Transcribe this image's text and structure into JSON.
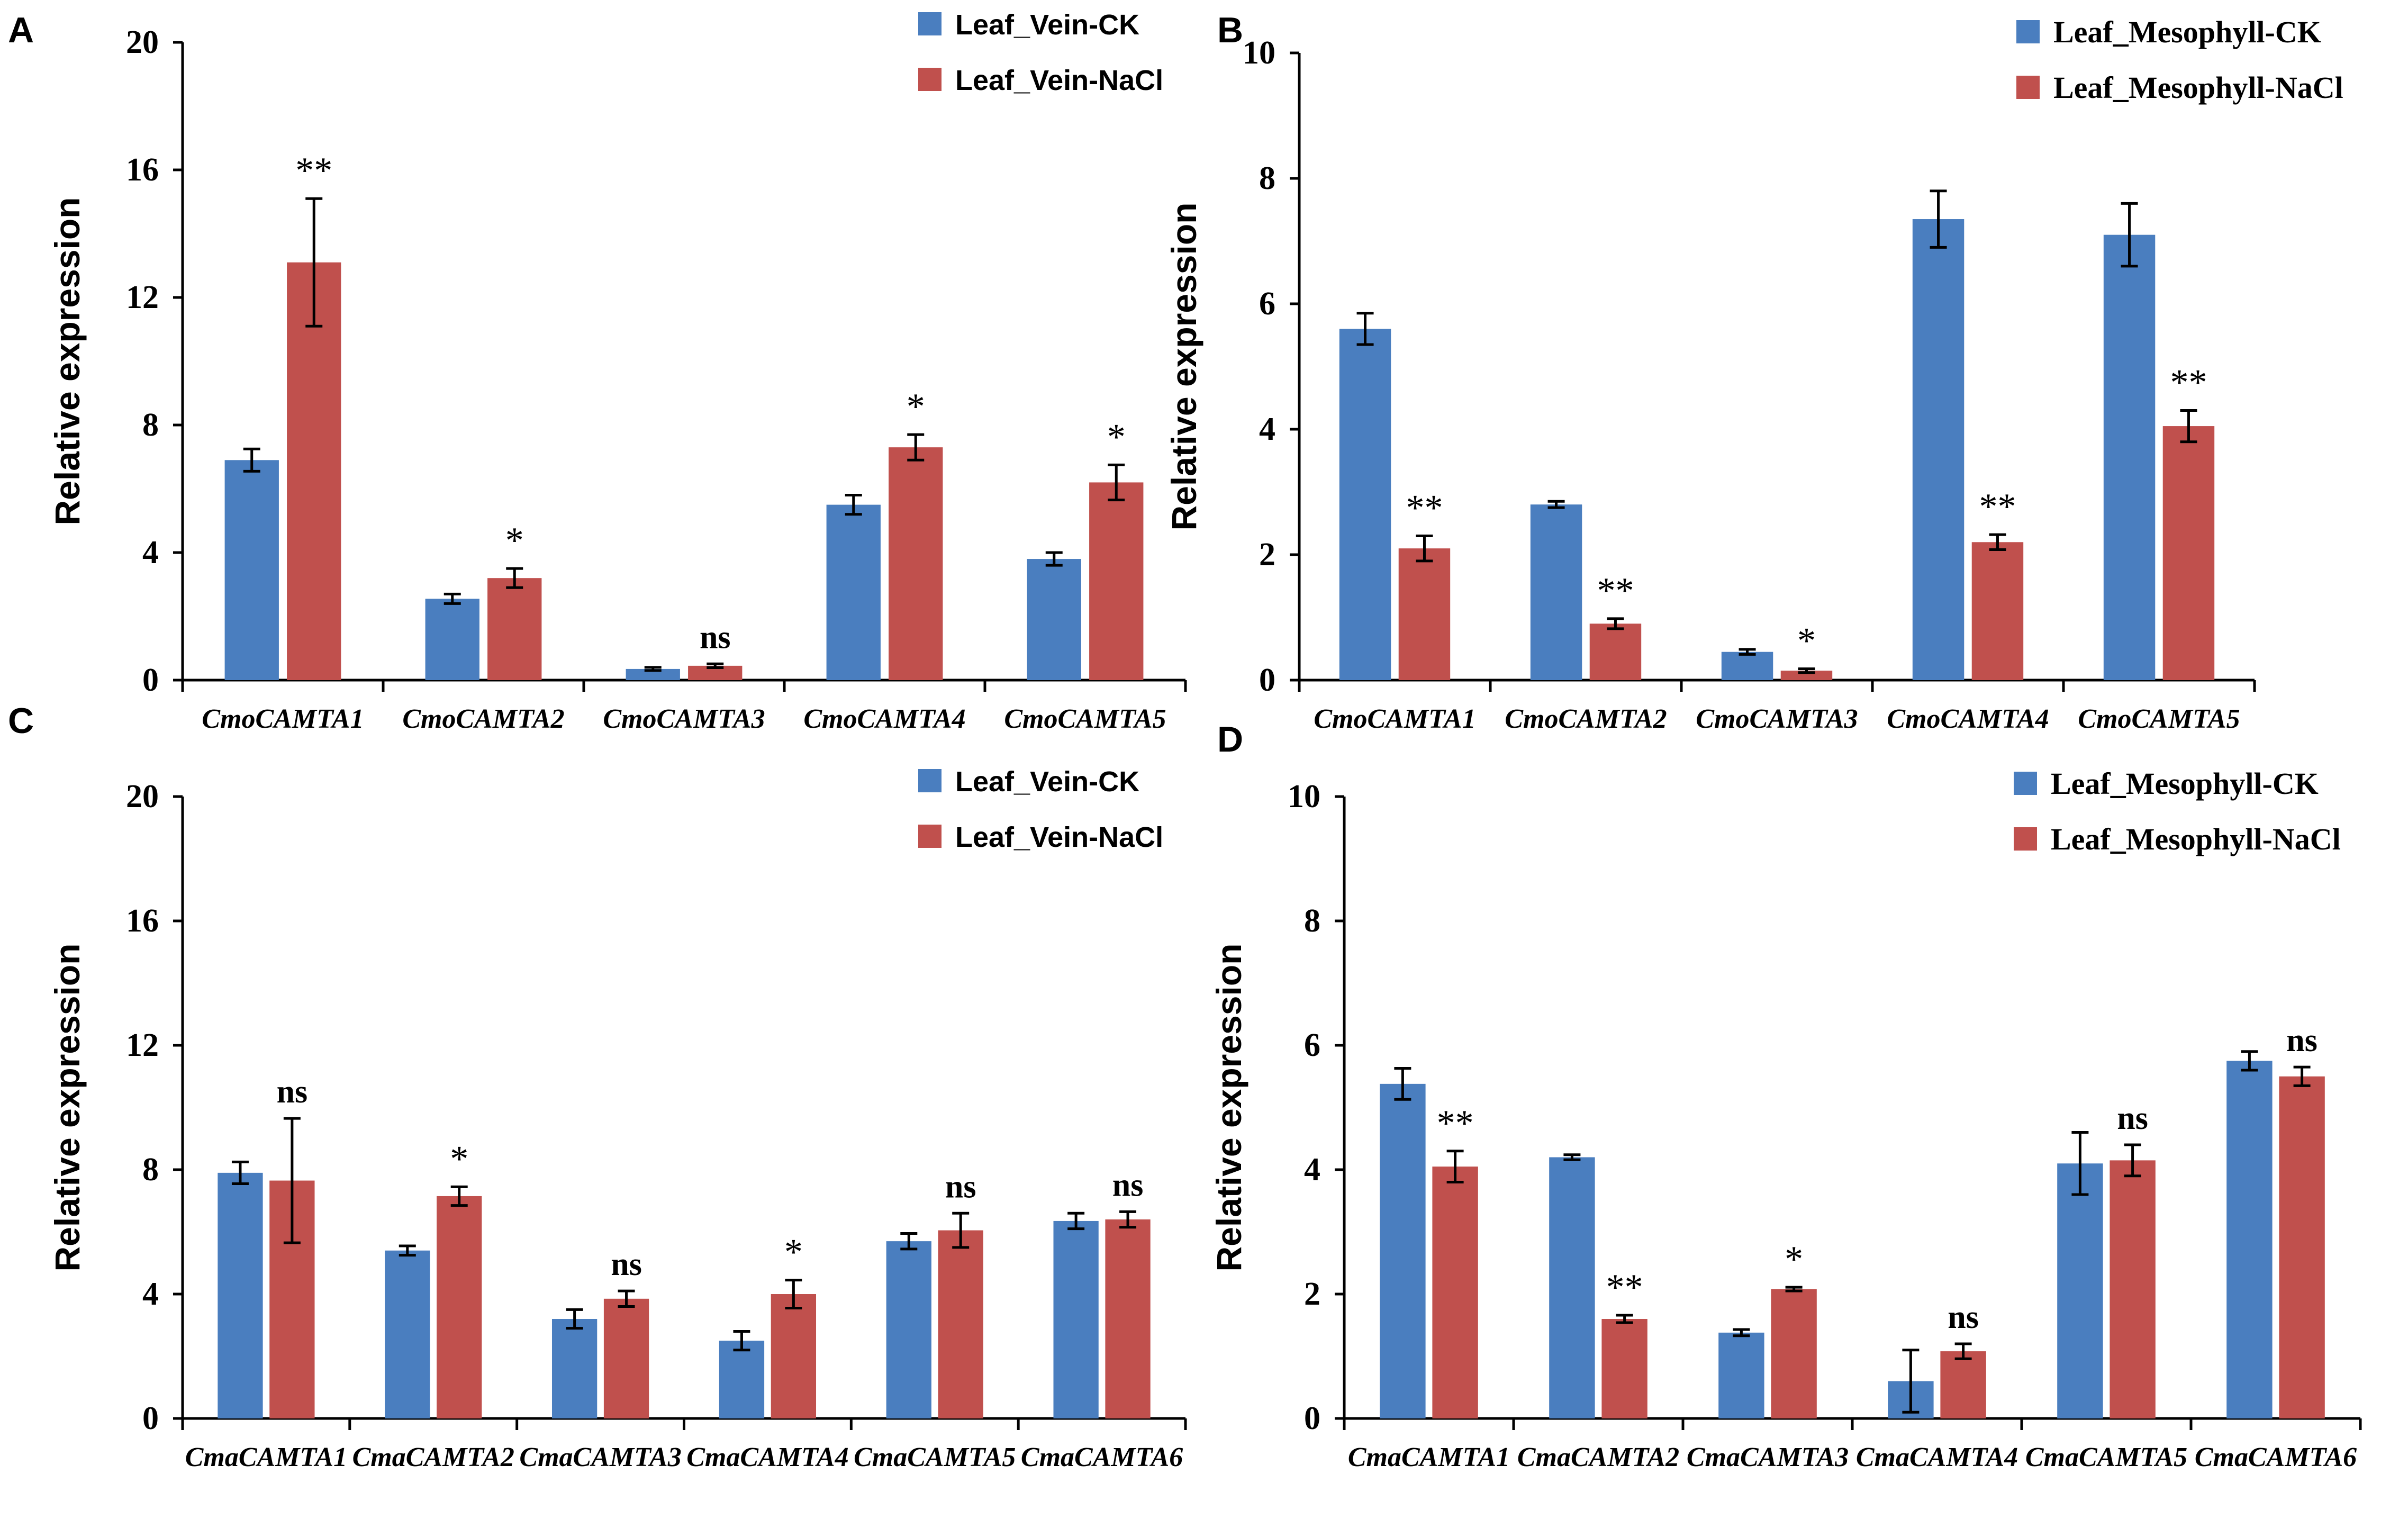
{
  "colors": {
    "ck": "#4a7ebf",
    "nacl": "#c0504d",
    "axis": "#000000",
    "errorbar": "#000000"
  },
  "chart_data": [
    {
      "panel": "A",
      "type": "bar",
      "title": "",
      "xlabel": "",
      "ylabel": "Relative expression",
      "ylim": [
        0,
        20
      ],
      "yticks": [
        "0",
        "4",
        "8",
        "12",
        "16",
        "20"
      ],
      "legend_position": "top-right",
      "legend_style": "sans",
      "grid": false,
      "categories": [
        "CmoCAMTA1",
        "CmoCAMTA2",
        "CmoCAMTA3",
        "CmoCAMTA4",
        "CmoCAMTA5"
      ],
      "series": [
        {
          "name": "Leaf_Vein-CK",
          "values": [
            6.9,
            2.55,
            0.35,
            5.5,
            3.8
          ],
          "errors": [
            0.35,
            0.15,
            0.05,
            0.3,
            0.2
          ]
        },
        {
          "name": "Leaf_Vein-NaCl",
          "values": [
            13.1,
            3.2,
            0.45,
            7.3,
            6.2
          ],
          "errors": [
            2.0,
            0.3,
            0.06,
            0.4,
            0.55
          ]
        }
      ],
      "significance": [
        "**",
        "*",
        "ns",
        "*",
        "*"
      ]
    },
    {
      "panel": "B",
      "type": "bar",
      "title": "",
      "xlabel": "",
      "ylabel": "Relative expression",
      "ylim": [
        0,
        10
      ],
      "yticks": [
        "0",
        "2",
        "4",
        "6",
        "8",
        "10"
      ],
      "legend_position": "top-right",
      "legend_style": "serif",
      "grid": false,
      "categories": [
        "CmoCAMTA1",
        "CmoCAMTA2",
        "CmoCAMTA3",
        "CmoCAMTA4",
        "CmoCAMTA5"
      ],
      "series": [
        {
          "name": "Leaf_Mesophyll-CK",
          "values": [
            5.6,
            2.8,
            0.45,
            7.35,
            7.1
          ],
          "errors": [
            0.25,
            0.05,
            0.04,
            0.45,
            0.5
          ]
        },
        {
          "name": "Leaf_Mesophyll-NaCl",
          "values": [
            2.1,
            0.9,
            0.15,
            2.2,
            4.05
          ],
          "errors": [
            0.2,
            0.08,
            0.03,
            0.12,
            0.25
          ]
        }
      ],
      "significance": [
        "**",
        "**",
        "*",
        "**",
        "**"
      ]
    },
    {
      "panel": "C",
      "type": "bar",
      "title": "",
      "xlabel": "",
      "ylabel": "Relative expression",
      "ylim": [
        0,
        20
      ],
      "yticks": [
        "0",
        "4",
        "8",
        "12",
        "16",
        "20"
      ],
      "legend_position": "top-right",
      "legend_style": "sans",
      "grid": false,
      "categories": [
        "CmaCAMTA1",
        "CmaCAMTA2",
        "CmaCAMTA3",
        "CmaCAMTA4",
        "CmaCAMTA5",
        "CmaCAMTA6"
      ],
      "series": [
        {
          "name": "Leaf_Vein-CK",
          "values": [
            7.9,
            5.4,
            3.2,
            2.5,
            5.7,
            6.35
          ],
          "errors": [
            0.35,
            0.15,
            0.3,
            0.3,
            0.25,
            0.25
          ]
        },
        {
          "name": "Leaf_Vein-NaCl",
          "values": [
            7.65,
            7.15,
            3.85,
            4.0,
            6.05,
            6.4
          ],
          "errors": [
            2.0,
            0.3,
            0.25,
            0.45,
            0.55,
            0.25
          ]
        }
      ],
      "significance": [
        "ns",
        "*",
        "ns",
        "*",
        "ns",
        "ns"
      ]
    },
    {
      "panel": "D",
      "type": "bar",
      "title": "",
      "xlabel": "",
      "ylabel": "Relative expression",
      "ylim": [
        0,
        10
      ],
      "yticks": [
        "0",
        "2",
        "4",
        "6",
        "8",
        "10"
      ],
      "legend_position": "top-right",
      "legend_style": "serif",
      "grid": false,
      "categories": [
        "CmaCAMTA1",
        "CmaCAMTA2",
        "CmaCAMTA3",
        "CmaCAMTA4",
        "CmaCAMTA5",
        "CmaCAMTA6"
      ],
      "series": [
        {
          "name": "Leaf_Mesophyll-CK",
          "values": [
            5.38,
            4.2,
            1.38,
            0.6,
            4.1,
            5.75
          ],
          "errors": [
            0.25,
            0.04,
            0.05,
            0.5,
            0.5,
            0.15
          ]
        },
        {
          "name": "Leaf_Mesophyll-NaCl",
          "values": [
            4.05,
            1.6,
            2.08,
            1.08,
            4.15,
            5.5
          ],
          "errors": [
            0.25,
            0.06,
            0.03,
            0.12,
            0.25,
            0.15
          ]
        }
      ],
      "significance": [
        "**",
        "**",
        "*",
        "ns",
        "ns",
        "ns"
      ]
    }
  ]
}
